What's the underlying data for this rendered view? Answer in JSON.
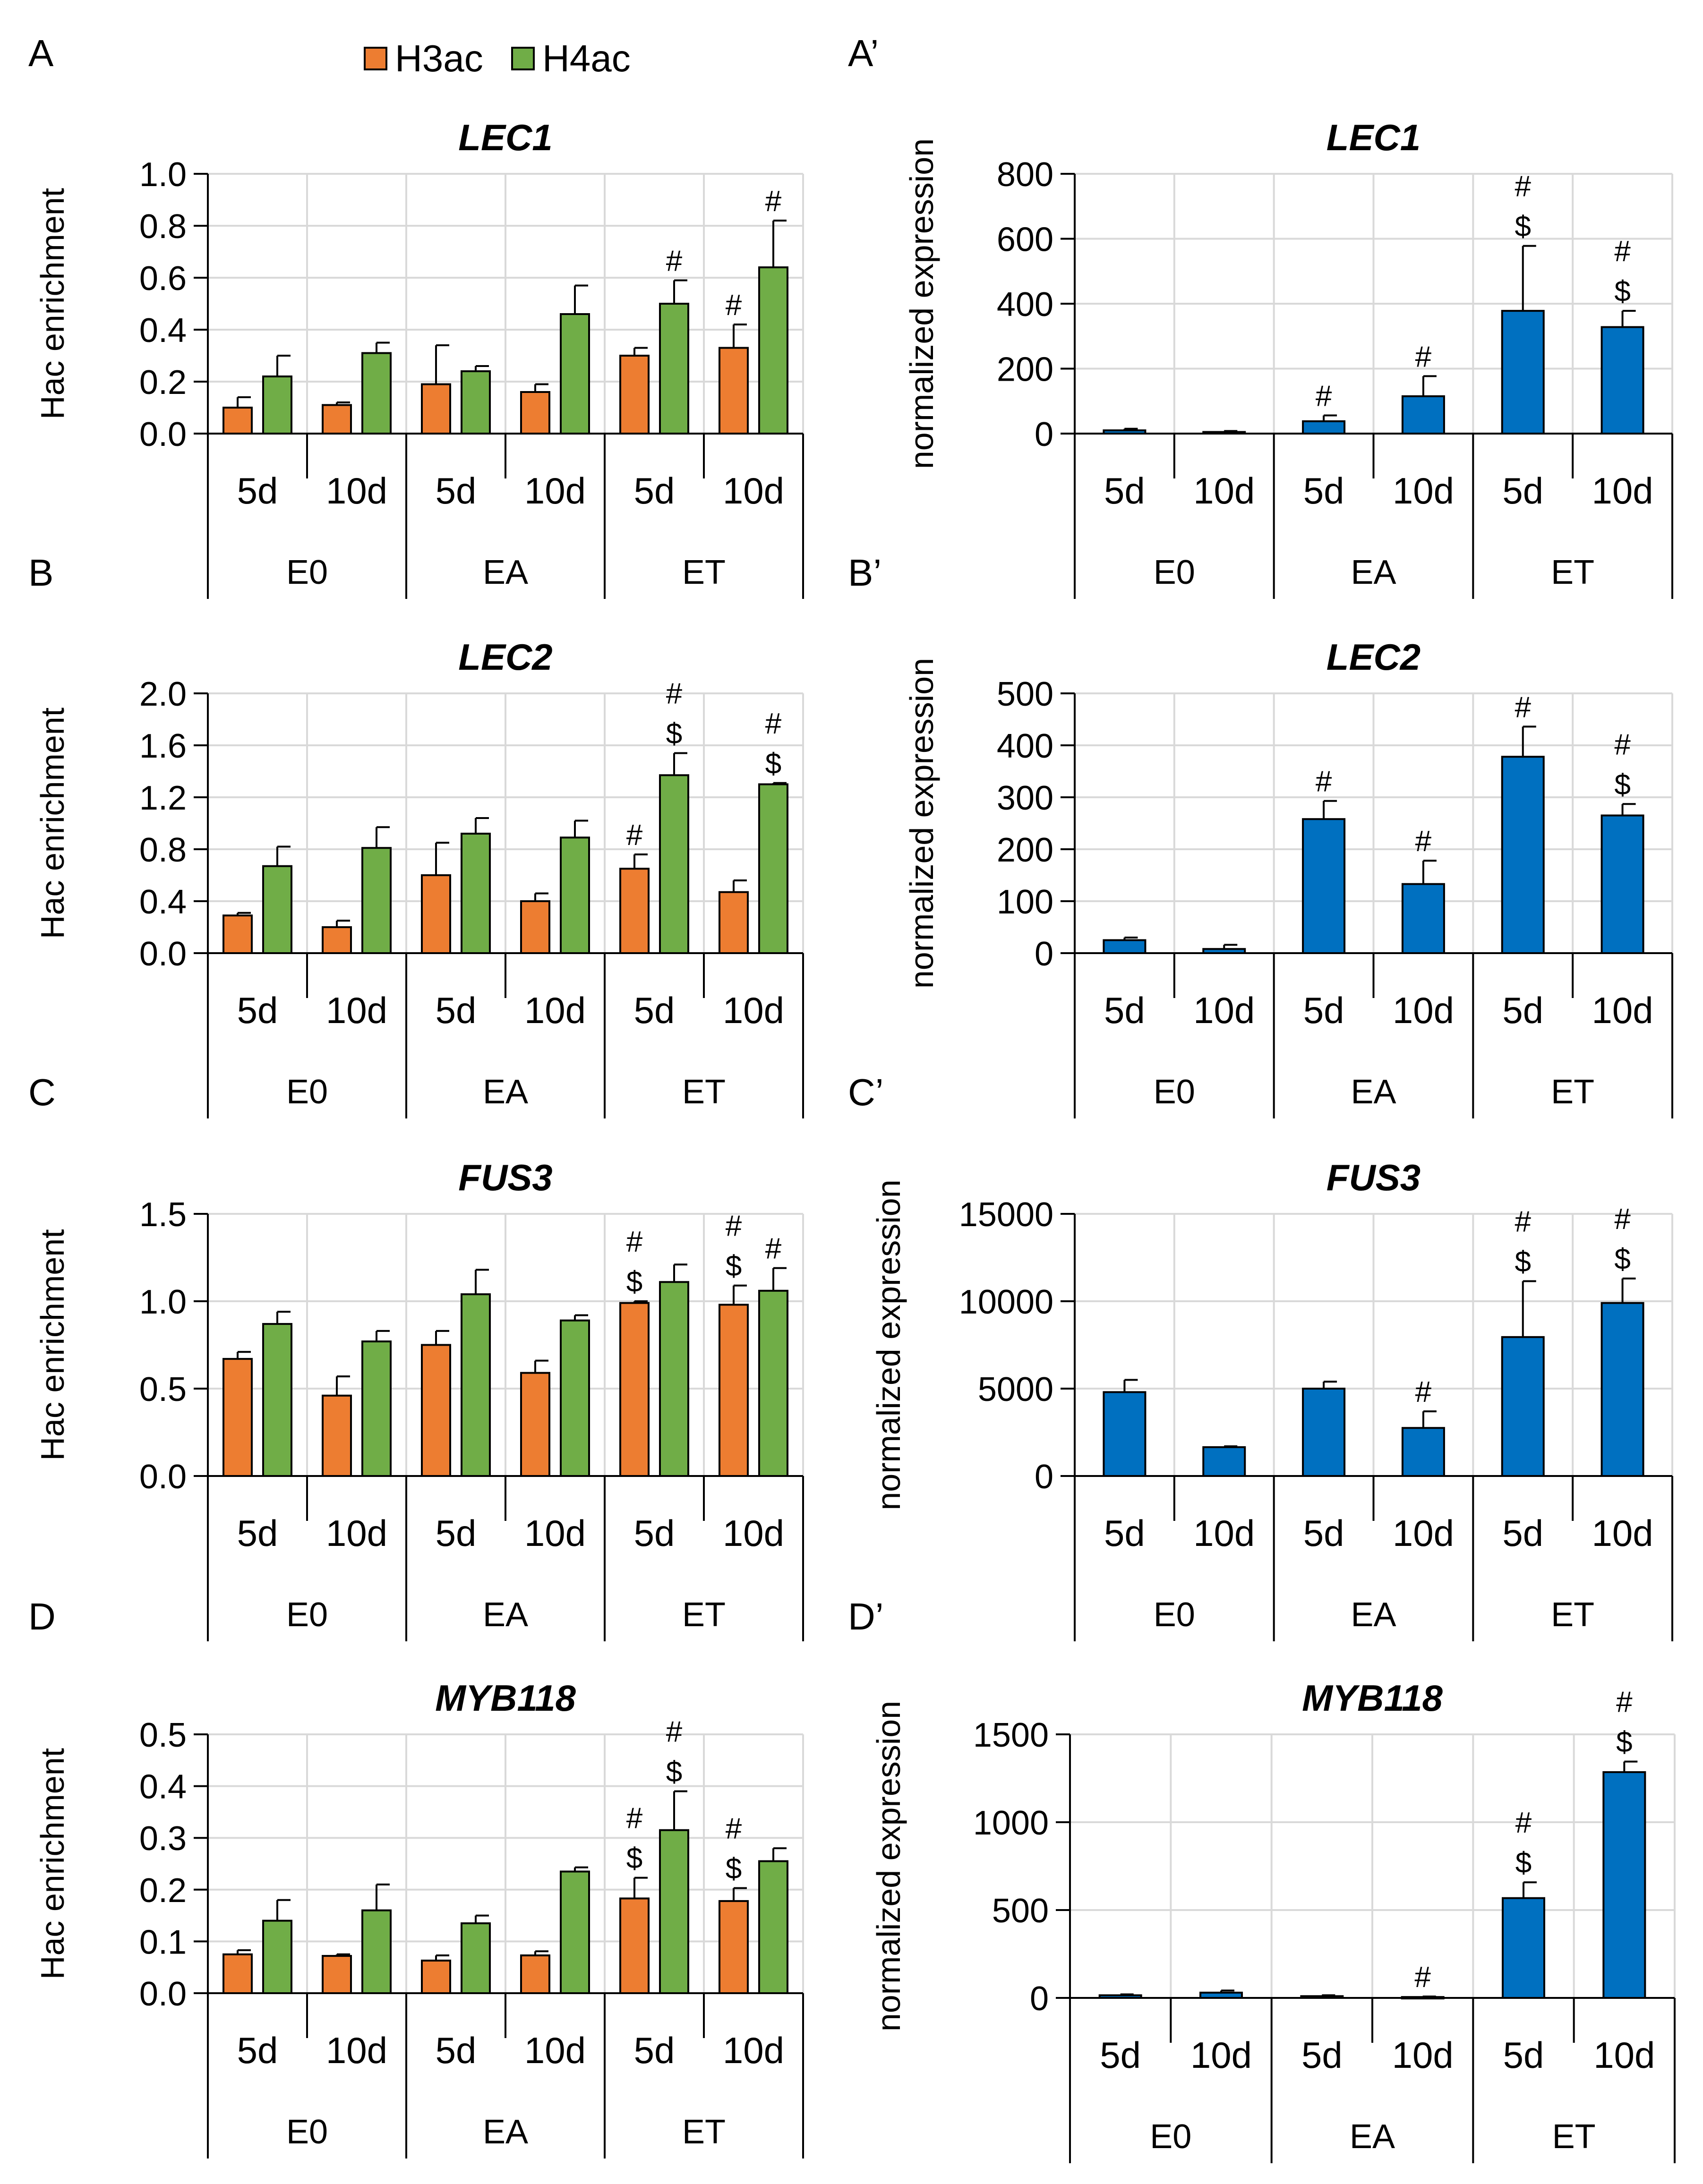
{
  "legend": {
    "items": [
      {
        "label": "H3ac",
        "color": "#ED7D31"
      },
      {
        "label": "H4ac",
        "color": "#70AD47"
      }
    ]
  },
  "colors": {
    "h3ac": "#ED7D31",
    "h4ac": "#70AD47",
    "expression": "#0070C0"
  },
  "chart_data": [
    {
      "panel": "A",
      "type": "bar",
      "title": "LEC1",
      "ylabel": "Hac enrichment",
      "ylim": [
        0,
        1.0
      ],
      "yticks": [
        "0.0",
        "0.2",
        "0.4",
        "0.6",
        "0.8",
        "1.0"
      ],
      "categories": [
        "5d",
        "10d",
        "5d",
        "10d",
        "5d",
        "10d"
      ],
      "groups": [
        "E0",
        "EA",
        "ET"
      ],
      "series": [
        {
          "name": "H3ac",
          "values": [
            0.1,
            0.11,
            0.19,
            0.16,
            0.3,
            0.33
          ],
          "errors": [
            0.04,
            0.01,
            0.15,
            0.03,
            0.03,
            0.09
          ],
          "annotations": [
            "",
            "",
            "",
            "",
            "",
            "#"
          ]
        },
        {
          "name": "H4ac",
          "values": [
            0.22,
            0.31,
            0.24,
            0.46,
            0.5,
            0.64
          ],
          "errors": [
            0.08,
            0.04,
            0.02,
            0.11,
            0.09,
            0.18
          ],
          "annotations": [
            "",
            "",
            "",
            "",
            "#",
            "#"
          ]
        }
      ]
    },
    {
      "panel": "A’",
      "type": "bar",
      "title": "LEC1",
      "ylabel": "normalized expression",
      "ylim": [
        0,
        800
      ],
      "yticks": [
        "0",
        "200",
        "400",
        "600",
        "800"
      ],
      "categories": [
        "5d",
        "10d",
        "5d",
        "10d",
        "5d",
        "10d"
      ],
      "groups": [
        "E0",
        "EA",
        "ET"
      ],
      "series": [
        {
          "name": "expression",
          "values": [
            10,
            5,
            38,
            115,
            378,
            328
          ],
          "errors": [
            5,
            3,
            18,
            62,
            200,
            50
          ],
          "annotations": [
            "",
            "",
            "#",
            "#",
            "#\n$",
            "#\n$"
          ]
        }
      ]
    },
    {
      "panel": "B",
      "type": "bar",
      "title": "LEC2",
      "ylabel": "Hac enrichment",
      "ylim": [
        0,
        2.0
      ],
      "yticks": [
        "0.0",
        "0.4",
        "0.8",
        "1.2",
        "1.6",
        "2.0"
      ],
      "categories": [
        "5d",
        "10d",
        "5d",
        "10d",
        "5d",
        "10d"
      ],
      "groups": [
        "E0",
        "EA",
        "ET"
      ],
      "series": [
        {
          "name": "H3ac",
          "values": [
            0.29,
            0.2,
            0.6,
            0.4,
            0.65,
            0.47
          ],
          "errors": [
            0.02,
            0.05,
            0.25,
            0.06,
            0.11,
            0.09
          ],
          "annotations": [
            "",
            "",
            "",
            "",
            "#",
            ""
          ]
        },
        {
          "name": "H4ac",
          "values": [
            0.67,
            0.81,
            0.92,
            0.89,
            1.37,
            1.3
          ],
          "errors": [
            0.15,
            0.16,
            0.12,
            0.13,
            0.17,
            0.01
          ],
          "annotations": [
            "",
            "",
            "",
            "",
            "#\n$",
            "#\n$"
          ]
        }
      ]
    },
    {
      "panel": "B’",
      "type": "bar",
      "title": "LEC2",
      "ylabel": "normalized expression",
      "ylim": [
        0,
        500
      ],
      "yticks": [
        "0",
        "100",
        "200",
        "300",
        "400",
        "500"
      ],
      "categories": [
        "5d",
        "10d",
        "5d",
        "10d",
        "5d",
        "10d"
      ],
      "groups": [
        "E0",
        "EA",
        "ET"
      ],
      "series": [
        {
          "name": "expression",
          "values": [
            25,
            8,
            258,
            133,
            378,
            265
          ],
          "errors": [
            5,
            8,
            35,
            45,
            58,
            22
          ],
          "annotations": [
            "",
            "",
            "#",
            "#",
            "#",
            "#\n$"
          ]
        }
      ]
    },
    {
      "panel": "C",
      "type": "bar",
      "title": "FUS3",
      "ylabel": "Hac enrichment",
      "ylim": [
        0,
        1.5
      ],
      "yticks": [
        "0.0",
        "0.5",
        "1.0",
        "1.5"
      ],
      "categories": [
        "5d",
        "10d",
        "5d",
        "10d",
        "5d",
        "10d"
      ],
      "groups": [
        "E0",
        "EA",
        "ET"
      ],
      "series": [
        {
          "name": "H3ac",
          "values": [
            0.67,
            0.46,
            0.75,
            0.59,
            0.99,
            0.98
          ],
          "errors": [
            0.04,
            0.11,
            0.08,
            0.07,
            0.01,
            0.11
          ],
          "annotations": [
            "",
            "",
            "",
            "",
            "#\n$",
            "#\n$"
          ]
        },
        {
          "name": "H4ac",
          "values": [
            0.87,
            0.77,
            1.04,
            0.89,
            1.11,
            1.06
          ],
          "errors": [
            0.07,
            0.06,
            0.14,
            0.03,
            0.1,
            0.13
          ],
          "annotations": [
            "",
            "",
            "",
            "",
            "",
            "#"
          ]
        }
      ]
    },
    {
      "panel": "C’",
      "type": "bar",
      "title": "FUS3",
      "ylabel": "normalized expression",
      "ylim": [
        0,
        15000
      ],
      "yticks": [
        "0",
        "5000",
        "10000",
        "15000"
      ],
      "categories": [
        "5d",
        "10d",
        "5d",
        "10d",
        "5d",
        "10d"
      ],
      "groups": [
        "E0",
        "EA",
        "ET"
      ],
      "series": [
        {
          "name": "expression",
          "values": [
            4800,
            1650,
            5000,
            2750,
            7950,
            9900
          ],
          "errors": [
            700,
            50,
            400,
            950,
            3200,
            1400
          ],
          "annotations": [
            "",
            "",
            "",
            "#",
            "#\n$",
            "#\n$"
          ]
        }
      ]
    },
    {
      "panel": "D",
      "type": "bar",
      "title": "MYB118",
      "ylabel": "Hac enrichment",
      "ylim": [
        0,
        0.5
      ],
      "yticks": [
        "0.0",
        "0.1",
        "0.2",
        "0.3",
        "0.4",
        "0.5"
      ],
      "categories": [
        "5d",
        "10d",
        "5d",
        "10d",
        "5d",
        "10d"
      ],
      "groups": [
        "E0",
        "EA",
        "ET"
      ],
      "series": [
        {
          "name": "H3ac",
          "values": [
            0.075,
            0.072,
            0.063,
            0.073,
            0.183,
            0.178
          ],
          "errors": [
            0.008,
            0.003,
            0.01,
            0.008,
            0.04,
            0.025
          ],
          "annotations": [
            "",
            "",
            "",
            "",
            "#\n$",
            "#\n$"
          ]
        },
        {
          "name": "H4ac",
          "values": [
            0.14,
            0.16,
            0.135,
            0.235,
            0.315,
            0.255
          ],
          "errors": [
            0.04,
            0.05,
            0.015,
            0.008,
            0.075,
            0.025
          ],
          "annotations": [
            "",
            "",
            "",
            "",
            "#\n$",
            ""
          ]
        }
      ]
    },
    {
      "panel": "D’",
      "type": "bar",
      "title": "MYB118",
      "ylabel": "normalized expression",
      "ylim": [
        0,
        1500
      ],
      "yticks": [
        "0",
        "500",
        "1000",
        "1500"
      ],
      "categories": [
        "5d",
        "10d",
        "5d",
        "10d",
        "5d",
        "10d"
      ],
      "groups": [
        "E0",
        "EA",
        "ET"
      ],
      "series": [
        {
          "name": "expression",
          "values": [
            15,
            30,
            10,
            5,
            568,
            1285
          ],
          "errors": [
            5,
            12,
            5,
            3,
            90,
            60
          ],
          "annotations": [
            "",
            "",
            "",
            "#",
            "#\n$",
            "#\n$"
          ]
        }
      ]
    }
  ]
}
